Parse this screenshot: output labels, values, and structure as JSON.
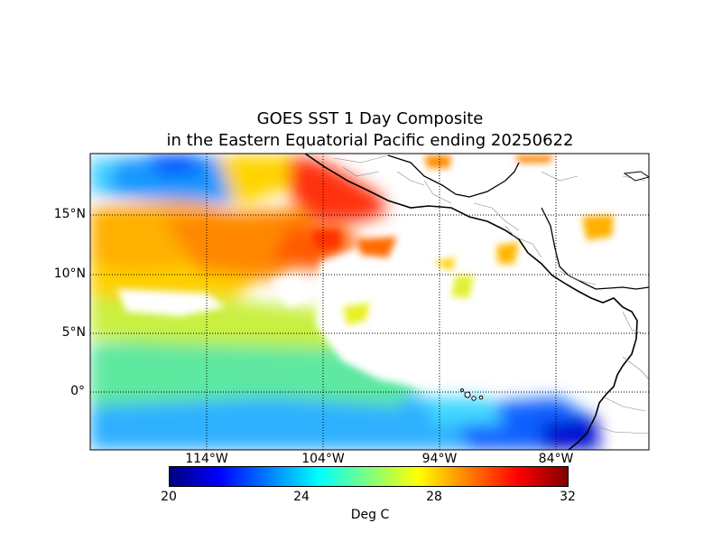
{
  "title": {
    "line1": "GOES SST 1 Day Composite",
    "line2": "in the Eastern Equatorial Pacific ending 20250622"
  },
  "map": {
    "region": "Eastern Equatorial Pacific",
    "lon_range": [
      -124,
      -76
    ],
    "lat_range": [
      -5,
      20
    ],
    "grid": "dotted",
    "lat_labels": [
      "15°N",
      "10°N",
      "5°N",
      "0°"
    ],
    "lon_labels": [
      "114°W",
      "104°W",
      "94°W",
      "84°W"
    ],
    "land_color": "#ffffff",
    "no_data_color": "#ffffff"
  },
  "colorbar": {
    "min": 20,
    "max": 32,
    "ticks": [
      "20",
      "24",
      "28",
      "32"
    ],
    "label": "Deg C",
    "colormap": "jet",
    "colors": [
      "#00007f",
      "#0000ff",
      "#007fff",
      "#00ffff",
      "#7fff7f",
      "#ffff00",
      "#ff7f00",
      "#ff0000",
      "#7f0000"
    ]
  }
}
